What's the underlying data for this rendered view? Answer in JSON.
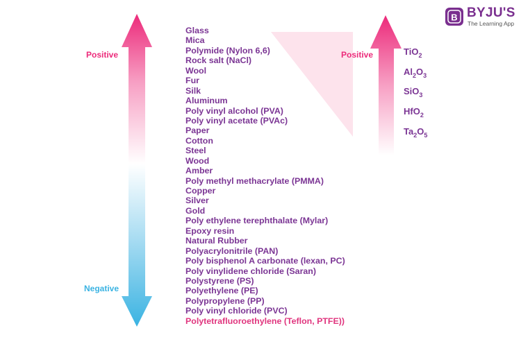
{
  "colors": {
    "positive": "#ec2a7a",
    "negative": "#3ab3e2",
    "series_text": "#7b3594",
    "highlight_text": "#e0357e",
    "brand": "#7a2f8f"
  },
  "left_scale": {
    "positive_label": "Positive",
    "negative_label": "Negative"
  },
  "series": {
    "items": [
      "Glass",
      "Mica",
      "Polymide (Nylon 6,6)",
      "Rock salt (NaCl)",
      "Wool",
      "Fur",
      "Silk",
      "Aluminum",
      "Poly vinyl alcohol (PVA)",
      "Poly vinyl acetate (PVAc)",
      "Paper",
      "Cotton",
      "Steel",
      "Wood",
      "Amber",
      "Poly methyl methacrylate (PMMA)",
      "Copper",
      "Silver",
      "Gold",
      "Poly ethylene terephthalate (Mylar)",
      "Epoxy resin",
      "Natural Rubber",
      "Polyacrylonitrile (PAN)",
      "Poly bisphenol A carbonate (lexan, PC)",
      "Poly vinylidene chloride (Saran)",
      "Polystyrene (PS)",
      "Polyethylene (PE)",
      "Polypropylene (PP)",
      "Poly vinyl chloride (PVC)",
      "Polytetrafluoroethylene (Teflon, PTFE))"
    ]
  },
  "right_scale": {
    "positive_label": "Positive",
    "oxides": [
      {
        "parts": [
          {
            "t": "TiO"
          },
          {
            "s": "2"
          }
        ]
      },
      {
        "parts": [
          {
            "t": "Al"
          },
          {
            "s": "2"
          },
          {
            "t": "O"
          },
          {
            "s": "3"
          }
        ]
      },
      {
        "parts": [
          {
            "t": "SiO"
          },
          {
            "s": "3"
          }
        ]
      },
      {
        "parts": [
          {
            "t": "HfO"
          },
          {
            "s": "2"
          }
        ]
      },
      {
        "parts": [
          {
            "t": "Ta"
          },
          {
            "s": "2"
          },
          {
            "t": "O"
          },
          {
            "s": "5"
          }
        ]
      }
    ]
  },
  "logo": {
    "badge_letter": "B",
    "wordmark": "BYJU'S",
    "tagline": "The Learning App"
  }
}
